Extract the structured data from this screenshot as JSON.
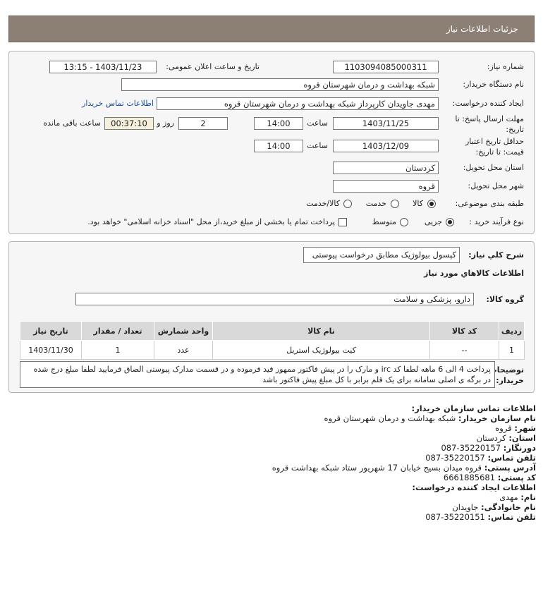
{
  "header": {
    "title": "جزئیات اطلاعات نیاز"
  },
  "details": {
    "need_number": {
      "label": "شماره نیاز:",
      "value": "1103094085000311"
    },
    "announce": {
      "label": "تاریخ و ساعت اعلان عمومی:",
      "value": "1403/11/23 - 13:15"
    },
    "buyer": {
      "label": "نام دستگاه خریدار:",
      "value": "شبکه بهداشت و درمان شهرستان قروه"
    },
    "creator": {
      "label": "ایجاد کننده درخواست:",
      "value": "مهدی جاویدان کارپرداز شبکه بهداشت و درمان شهرستان قروه",
      "link": "اطلاعات تماس خریدار"
    },
    "deadline": {
      "label_line1": "مهلت ارسال پاسخ: تا",
      "label_line2": "تاریخ:",
      "date": "1403/11/25",
      "time_label": "ساعت",
      "time": "14:00",
      "days": "2",
      "days_label": "روز و",
      "remaining": "00:37:10",
      "remaining_label": "ساعت باقی مانده"
    },
    "validity": {
      "label_line1": "حداقل تاریخ اعتبار",
      "label_line2": "قیمت: تا تاریخ:",
      "date": "1403/12/09",
      "time_label": "ساعت",
      "time": "14:00"
    },
    "province": {
      "label": "استان محل تحویل:",
      "value": "کردستان"
    },
    "city": {
      "label": "شهر محل تحویل:",
      "value": "قروه"
    },
    "category": {
      "label": "طبقه بندی موضوعی:",
      "options": [
        {
          "label": "کالا",
          "checked": true
        },
        {
          "label": "خدمت",
          "checked": false
        },
        {
          "label": "کالا/خدمت",
          "checked": false
        }
      ]
    },
    "process": {
      "label": "نوع فرآیند خرید :",
      "options": [
        {
          "label": "جزیی",
          "checked": true
        },
        {
          "label": "متوسط",
          "checked": false
        }
      ],
      "treasury": {
        "label": "پرداخت تمام یا بخشی از مبلغ خرید،از محل \"اسناد خزانه اسلامی\" خواهد بود.",
        "checked": false
      }
    }
  },
  "need": {
    "description_label": "شرح کلي نياز:",
    "description": "کپسول بیولوژیک مطابق درخواست پیوستی",
    "goods_title": "اطلاعات کالاهاي مورد نياز",
    "group_label": "گروه کالا:",
    "group": "دارو، پزشکی و سلامت",
    "table": {
      "headers": [
        "ردیف",
        "کد کالا",
        "نام کالا",
        "واحد شمارش",
        "تعداد / مقدار",
        "تاریخ نیاز"
      ],
      "rows": [
        [
          "1",
          "--",
          "کیت بیولوژیک استریل",
          "عدد",
          "1",
          "1403/11/30"
        ]
      ]
    },
    "notes_label_line1": "توضیحات",
    "notes_label_line2": "خریدار:",
    "notes": "پرداخت 4 الی 6 ماهه لطفا کد irc و مارک را در پیش فاکتور ممهور قید فرموده و در قسمت مدارک پیوستی الصاق فرمایید لطفا مبلغ درج شده در برگه ی اصلی سامانه برای یک قلم برابر با کل مبلغ پیش فاکتور باشد"
  },
  "contact": {
    "lines": [
      {
        "label": "اطلاعات تماس سازمان خریدار:"
      },
      {
        "label": "نام سازمان خریدار:",
        "value": "شبکه بهداشت و درمان شهرستان قروه"
      },
      {
        "label": "شهر:",
        "value": "قروه"
      },
      {
        "label": "استان:",
        "value": "کردستان"
      },
      {
        "label": "دورنگار:",
        "value": "087-35220157"
      },
      {
        "label": "تلفن تماس:",
        "value": "087-35220157"
      },
      {
        "label": "آدرس پستی:",
        "value": "قروه میدان بسیج خیابان 17 شهریور ستاد شبکه بهداشت قروه"
      },
      {
        "label": "کد پستی:",
        "value": "6661885681"
      },
      {
        "label": "اطلاعات ایجاد کننده درخواست:"
      },
      {
        "label": "نام:",
        "value": "مهدی"
      },
      {
        "label": "نام خانوادگی:",
        "value": "جاویدان"
      },
      {
        "label": "تلفن تماس:",
        "value": "087-35220151"
      }
    ]
  }
}
